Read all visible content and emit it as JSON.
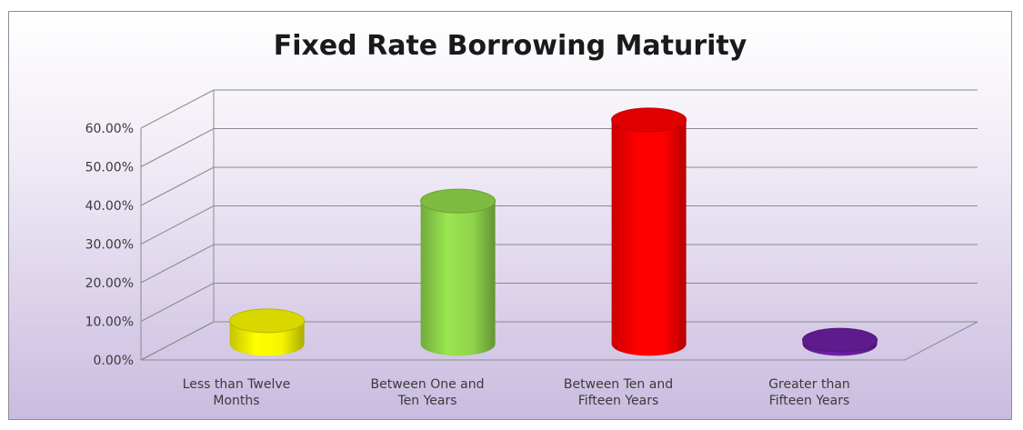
{
  "chart_data": {
    "type": "bar",
    "title": "Fixed Rate Borrowing Maturity",
    "xlabel": "",
    "ylabel": "",
    "ylim": [
      0,
      0.6
    ],
    "yticks": [
      "0.00%",
      "10.00%",
      "20.00%",
      "30.00%",
      "40.00%",
      "50.00%",
      "60.00%"
    ],
    "grid": true,
    "categories": [
      [
        "Less than Twelve",
        "Months"
      ],
      [
        "Between One and",
        "Ten Years"
      ],
      [
        "Between Ten and",
        "Fifteen Years"
      ],
      [
        "Greater than",
        "Fifteen Years"
      ]
    ],
    "values": [
      0.06,
      0.37,
      0.58,
      0.01
    ],
    "colors": [
      "#f5f500",
      "#8fd44a",
      "#ff0000",
      "#6a1fa0"
    ]
  }
}
